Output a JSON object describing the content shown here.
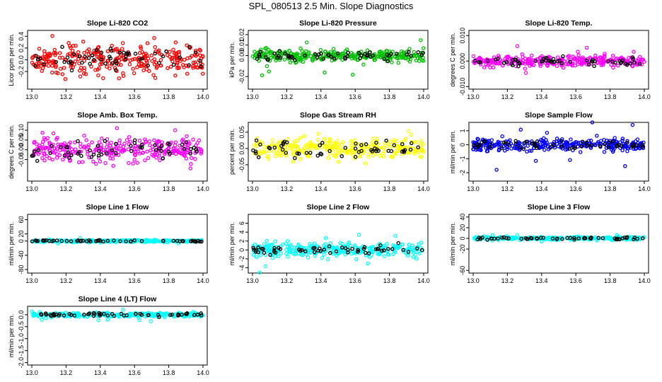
{
  "figure_title": "SPL_080513  2.5 Min. Slope Diagnostics",
  "chart_data": [
    {
      "type": "scatter",
      "title": "Slope Li-820 CO2",
      "ylabel": "Licor ppm per min.",
      "color": "#ff0000",
      "xlim": [
        13.0,
        14.0
      ],
      "ylim": [
        -0.5,
        0.5
      ],
      "xticks": [
        "13.0",
        "13.2",
        "13.4",
        "13.6",
        "13.8",
        "14.0"
      ],
      "yticks": [
        "-0.2",
        "0.0",
        "0.2",
        "0.4"
      ],
      "ytick_values": [
        -0.2,
        0.0,
        0.2,
        0.4
      ],
      "n_points": 300,
      "spread": 0.18,
      "outlier_amp": 0.3,
      "seed": 11
    },
    {
      "type": "scatter",
      "title": "Slope Li-820 Pressure",
      "ylabel": "kPa per min.",
      "color": "#00c000",
      "xlim": [
        13.0,
        14.0
      ],
      "ylim": [
        -0.032,
        0.024
      ],
      "xticks": [
        "13.0",
        "13.2",
        "13.4",
        "13.6",
        "13.8",
        "14.0"
      ],
      "yticks": [
        "-0.02",
        "0.00",
        "0.01",
        "0.02"
      ],
      "ytick_values": [
        -0.02,
        0.0,
        0.01,
        0.02
      ],
      "n_points": 300,
      "spread": 0.004,
      "outlier_amp": 0.02,
      "seed": 23
    },
    {
      "type": "scatter",
      "title": "Slope Li-820 Temp.",
      "ylabel": "degrees C per min.",
      "color": "#ff00ff",
      "xlim": [
        13.0,
        14.0
      ],
      "ylim": [
        -0.011,
        0.012
      ],
      "xticks": [
        "13.0",
        "13.2",
        "13.4",
        "13.6",
        "13.8",
        "14.0"
      ],
      "yticks": [
        "-0.010",
        "0.000",
        "0.010"
      ],
      "ytick_values": [
        -0.01,
        0.0,
        0.01
      ],
      "n_points": 300,
      "spread": 0.0015,
      "outlier_amp": 0.008,
      "seed": 37
    },
    {
      "type": "scatter",
      "title": "Slope Amb. Box Temp.",
      "ylabel": "degrees C per min.",
      "color": "#ff00ff",
      "xlim": [
        13.0,
        14.0
      ],
      "ylim": [
        -0.16,
        0.14
      ],
      "xticks": [
        "13.0",
        "13.2",
        "13.4",
        "13.6",
        "13.8",
        "14.0"
      ],
      "yticks": [
        "-0.05",
        "0.00",
        "0.05",
        "0.10"
      ],
      "ytick_values": [
        -0.05,
        0.0,
        0.05,
        0.1
      ],
      "n_points": 300,
      "spread": 0.04,
      "outlier_amp": 0.1,
      "seed": 41
    },
    {
      "type": "scatter",
      "title": "Slope Gas Stream RH",
      "ylabel": "percent per min.",
      "color": "#ffff00",
      "xlim": [
        13.0,
        14.0
      ],
      "ylim": [
        -0.1,
        0.08
      ],
      "xticks": [
        "13.0",
        "13.2",
        "13.4",
        "13.6",
        "13.8",
        "14.0"
      ],
      "yticks": [
        "-0.05",
        "0.00",
        "0.05"
      ],
      "ytick_values": [
        -0.05,
        0.0,
        0.05
      ],
      "n_points": 300,
      "spread": 0.022,
      "outlier_amp": 0.06,
      "seed": 53
    },
    {
      "type": "scatter",
      "title": "Slope Sample Flow",
      "ylabel": "ml/min per min.",
      "color": "#0000ff",
      "xlim": [
        13.0,
        14.0
      ],
      "ylim": [
        -2.6,
        1.6
      ],
      "xticks": [
        "13.0",
        "13.2",
        "13.4",
        "13.6",
        "13.8",
        "14.0"
      ],
      "yticks": [
        "-2",
        "-1",
        "0",
        "1"
      ],
      "ytick_values": [
        -2,
        -1,
        0,
        1
      ],
      "n_points": 300,
      "spread": 0.3,
      "outlier_amp": 1.5,
      "seed": 67
    },
    {
      "type": "scatter",
      "title": "Slope Line 1 Flow",
      "ylabel": "ml/min per min.",
      "color": "#00ffff",
      "xlim": [
        13.0,
        14.0
      ],
      "ylim": [
        -90,
        75
      ],
      "xticks": [
        "13.0",
        "13.2",
        "13.4",
        "13.6",
        "13.8",
        "14.0"
      ],
      "yticks": [
        "-80",
        "-40",
        "0",
        "20",
        "60"
      ],
      "ytick_values": [
        -80,
        -40,
        0,
        20,
        60
      ],
      "n_points": 300,
      "spread": 2,
      "outlier_amp": 8,
      "seed": 71
    },
    {
      "type": "scatter",
      "title": "Slope Line 2 Flow",
      "ylabel": "ml/min per min.",
      "color": "#00ffff",
      "xlim": [
        13.0,
        14.0
      ],
      "ylim": [
        -5.2,
        8.0
      ],
      "xticks": [
        "13.0",
        "13.2",
        "13.4",
        "13.6",
        "13.8",
        "14.0"
      ],
      "yticks": [
        "-4",
        "-2",
        "0",
        "2",
        "4",
        "6"
      ],
      "ytick_values": [
        -4,
        -2,
        0,
        2,
        4,
        6
      ],
      "n_points": 300,
      "spread": 1.1,
      "outlier_amp": 3,
      "seed": 83
    },
    {
      "type": "scatter",
      "title": "Slope Line 3 Flow",
      "ylabel": "ml/min per min.",
      "color": "#00ffff",
      "xlim": [
        13.0,
        14.0
      ],
      "ylim": [
        -65,
        45
      ],
      "xticks": [
        "13.0",
        "13.2",
        "13.4",
        "13.6",
        "13.8",
        "14.0"
      ],
      "yticks": [
        "-60",
        "-20",
        "0",
        "20",
        "40"
      ],
      "ytick_values": [
        -60,
        -20,
        0,
        20,
        40
      ],
      "n_points": 300,
      "spread": 2,
      "outlier_amp": 6,
      "seed": 97
    },
    {
      "type": "scatter",
      "title": "Slope Line 4 (LT) Flow",
      "ylabel": "ml/min per min.",
      "color": "#00ffff",
      "xlim": [
        13.0,
        14.0
      ],
      "ylim": [
        -2.1,
        0.35
      ],
      "xticks": [
        "13.0",
        "13.2",
        "13.4",
        "13.6",
        "13.8",
        "14.0"
      ],
      "yticks": [
        "-2.0",
        "-1.5",
        "-1.0",
        "-0.5",
        "0.0"
      ],
      "ytick_values": [
        -2.0,
        -1.5,
        -1.0,
        -0.5,
        0.0
      ],
      "n_points": 300,
      "spread": 0.06,
      "outlier_amp": 0.25,
      "seed": 101
    }
  ]
}
